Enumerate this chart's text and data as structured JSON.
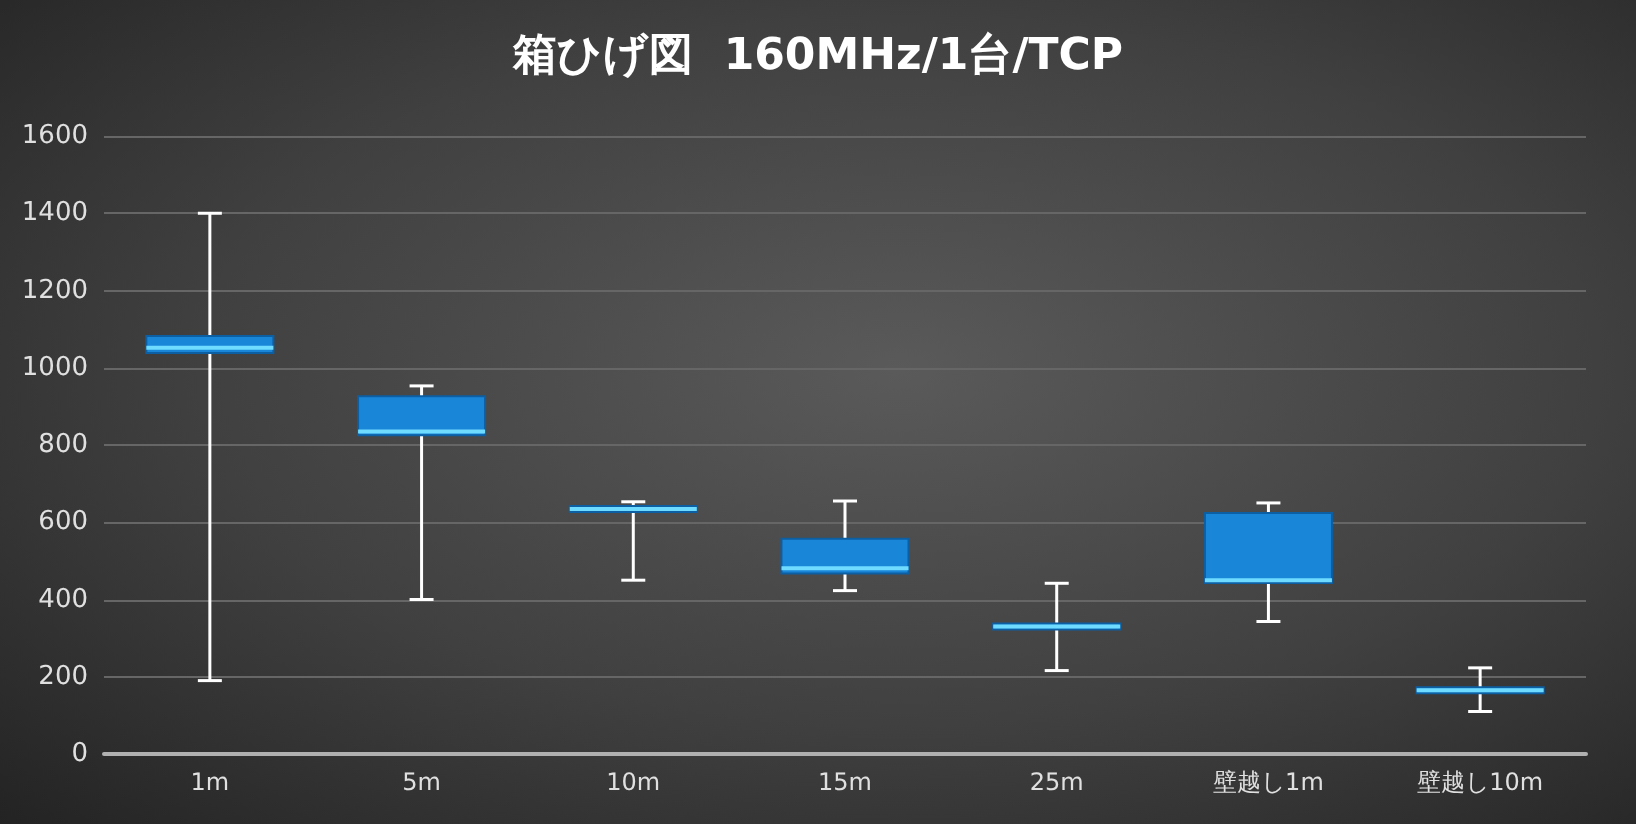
{
  "chart_data": {
    "type": "box",
    "title": "箱ひげ図  160MHz/1台/TCP",
    "categories": [
      "1m",
      "5m",
      "10m",
      "15m",
      "25m",
      "壁越し1m",
      "壁越し10m"
    ],
    "boxes": [
      {
        "low": 190,
        "q1": 1038,
        "median": 1052,
        "q3": 1082,
        "high": 1400
      },
      {
        "low": 400,
        "q1": 825,
        "median": 835,
        "q3": 926,
        "high": 953
      },
      {
        "low": 450,
        "q1": 634,
        "median": 634,
        "q3": 634,
        "high": 653
      },
      {
        "low": 423,
        "q1": 467,
        "median": 481,
        "q3": 557,
        "high": 655
      },
      {
        "low": 216,
        "q1": 330,
        "median": 330,
        "q3": 330,
        "high": 442
      },
      {
        "low": 343,
        "q1": 443,
        "median": 450,
        "q3": 624,
        "high": 650
      },
      {
        "low": 110,
        "q1": 165,
        "median": 165,
        "q3": 165,
        "high": 223
      }
    ],
    "color": "#1a86d8",
    "ylim": [
      0,
      1600
    ],
    "yticks": [
      0,
      200,
      400,
      600,
      800,
      1000,
      1200,
      1400,
      1600
    ],
    "grid": "y"
  }
}
